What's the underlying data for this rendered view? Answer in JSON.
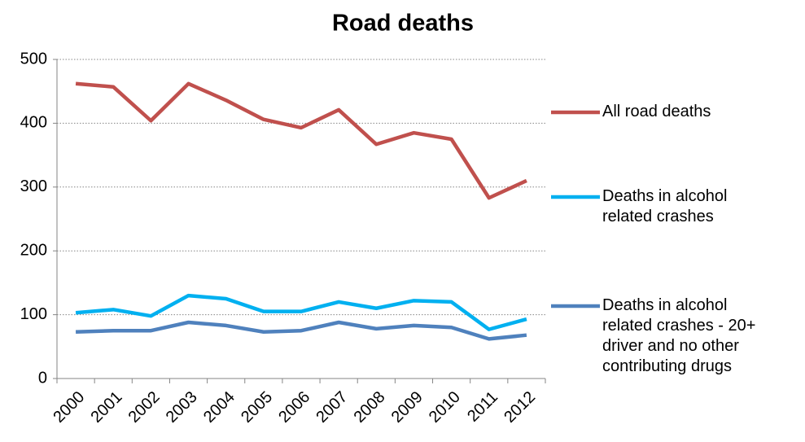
{
  "chart_data": {
    "type": "line",
    "title": "Road deaths",
    "categories": [
      "2000",
      "2001",
      "2002",
      "2003",
      "2004",
      "2005",
      "2006",
      "2007",
      "2008",
      "2009",
      "2010",
      "2011",
      "2012"
    ],
    "series": [
      {
        "name": "All road deaths",
        "color": "#c0504d",
        "values": [
          462,
          457,
          404,
          462,
          436,
          406,
          393,
          421,
          367,
          385,
          375,
          283,
          310
        ]
      },
      {
        "name": "Deaths in alcohol related crashes",
        "color": "#00b0f0",
        "values": [
          103,
          108,
          98,
          130,
          125,
          105,
          105,
          120,
          110,
          122,
          120,
          77,
          93
        ]
      },
      {
        "name": "Deaths in alcohol related crashes - 20+ driver and no other contributing drugs",
        "color": "#4f81bd",
        "values": [
          73,
          75,
          75,
          88,
          83,
          73,
          75,
          88,
          78,
          83,
          80,
          62,
          68
        ]
      }
    ],
    "ylim": [
      0,
      500
    ],
    "yticks": [
      0,
      100,
      200,
      300,
      400,
      500
    ],
    "grid": true,
    "legend": "right"
  }
}
